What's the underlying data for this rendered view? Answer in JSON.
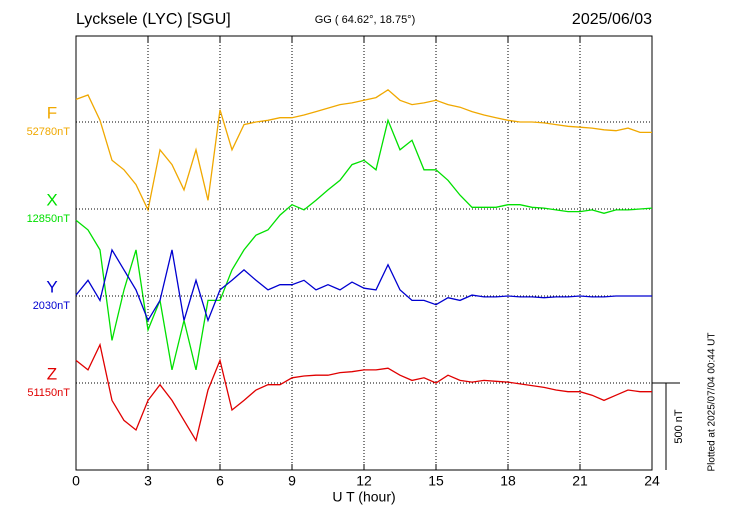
{
  "chart_data": {
    "type": "line",
    "title": "Lycksele (LYC)  [SGU]",
    "coordinates": "GG ( 64.62°,  18.75°)",
    "date": "2025/06/03",
    "xlabel": "U T (hour)",
    "plotted_note": "Plotted at 2025/07/04 00:44 UT",
    "scale_bar": {
      "value": 500,
      "label": "500 nT"
    },
    "xlim": [
      0,
      24
    ],
    "xticks": [
      0,
      3,
      6,
      9,
      12,
      15,
      18,
      21,
      24
    ],
    "grid": true,
    "x": [
      0,
      0.5,
      1,
      1.5,
      2,
      2.5,
      3,
      3.5,
      4,
      4.5,
      5,
      5.5,
      6,
      6.5,
      7,
      7.5,
      8,
      8.5,
      9,
      9.5,
      10,
      10.5,
      11,
      11.5,
      12,
      12.5,
      13,
      13.5,
      14,
      14.5,
      15,
      15.5,
      16,
      16.5,
      17,
      17.5,
      18,
      18.5,
      19,
      19.5,
      20,
      20.5,
      21,
      21.5,
      22,
      22.5,
      23,
      23.5,
      24
    ],
    "series": [
      {
        "name": "F",
        "color": "#f0a800",
        "baseline": {
          "value": 52780,
          "label": "52780nT"
        },
        "values": [
          52910,
          52935,
          52790,
          52560,
          52505,
          52420,
          52275,
          52620,
          52535,
          52390,
          52620,
          52330,
          52850,
          52620,
          52765,
          52780,
          52790,
          52805,
          52805,
          52820,
          52840,
          52860,
          52880,
          52890,
          52905,
          52920,
          52965,
          52905,
          52880,
          52890,
          52905,
          52880,
          52865,
          52840,
          52820,
          52805,
          52790,
          52780,
          52780,
          52775,
          52765,
          52755,
          52750,
          52745,
          52735,
          52730,
          52745,
          52720,
          52720
        ]
      },
      {
        "name": "X",
        "color": "#00e000",
        "baseline": {
          "value": 12850,
          "label": "12850nT"
        },
        "values": [
          12785,
          12730,
          12615,
          12095,
          12385,
          12615,
          12155,
          12325,
          11925,
          12210,
          11925,
          12325,
          12325,
          12500,
          12615,
          12700,
          12730,
          12815,
          12875,
          12845,
          12900,
          12960,
          13015,
          13105,
          13130,
          13075,
          13360,
          13190,
          13245,
          13075,
          13075,
          13015,
          12930,
          12860,
          12860,
          12860,
          12875,
          12875,
          12860,
          12855,
          12845,
          12835,
          12835,
          12845,
          12825,
          12845,
          12845,
          12850,
          12855
        ]
      },
      {
        "name": "Y",
        "color": "#0000d0",
        "baseline": {
          "value": 2030,
          "label": "2030nT"
        },
        "values": [
          2035,
          2120,
          2005,
          2295,
          2180,
          2065,
          1890,
          2005,
          2295,
          1890,
          2120,
          1890,
          2065,
          2120,
          2180,
          2120,
          2065,
          2095,
          2095,
          2120,
          2065,
          2095,
          2065,
          2110,
          2075,
          2065,
          2210,
          2065,
          2005,
          2005,
          1980,
          2020,
          2005,
          2035,
          2025,
          2025,
          2030,
          2025,
          2025,
          2020,
          2025,
          2025,
          2030,
          2025,
          2025,
          2030,
          2030,
          2030,
          2030
        ]
      },
      {
        "name": "Z",
        "color": "#e00000",
        "baseline": {
          "value": 51150,
          "label": "51150nT"
        },
        "values": [
          51280,
          51225,
          51370,
          51050,
          50935,
          50880,
          51050,
          51140,
          51050,
          50935,
          50820,
          51110,
          51280,
          50995,
          51050,
          51110,
          51140,
          51140,
          51180,
          51190,
          51195,
          51195,
          51210,
          51215,
          51225,
          51225,
          51235,
          51195,
          51165,
          51180,
          51150,
          51195,
          51165,
          51155,
          51165,
          51160,
          51155,
          51145,
          51135,
          51125,
          51110,
          51100,
          51100,
          51080,
          51050,
          51080,
          51110,
          51100,
          51100
        ]
      }
    ]
  }
}
